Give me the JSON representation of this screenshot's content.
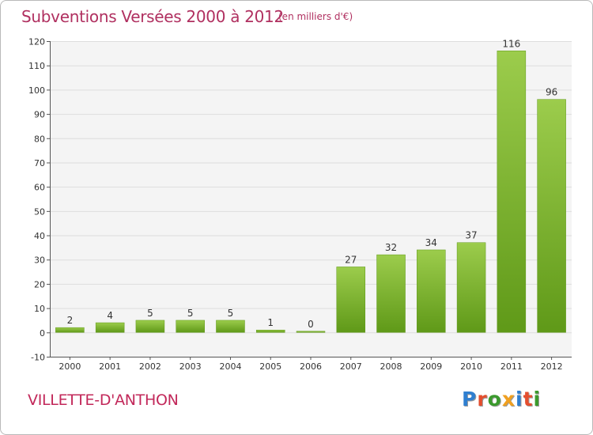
{
  "header": {
    "title": "Subventions Versées 2000 à 2012",
    "unit": "(en milliers d'€)"
  },
  "footer": {
    "commune": "VILLETTE-D'ANTHON",
    "logo": [
      "P",
      "r",
      "o",
      "x",
      "i",
      "t",
      "i"
    ]
  },
  "colors": {
    "title": "#b03060",
    "bar_light": "#9ccc4c",
    "bar_dark": "#5f9918",
    "grid": "#dddddd",
    "plot_bg": "#f4f4f4",
    "logo": [
      "#2f7fd0",
      "#e44e2e",
      "#3b9a2d",
      "#f0a020",
      "#2f7fd0",
      "#e44e2e",
      "#3b9a2d"
    ]
  },
  "chart_data": {
    "type": "bar",
    "categories": [
      "2000",
      "2001",
      "2002",
      "2003",
      "2004",
      "2005",
      "2006",
      "2007",
      "2008",
      "2009",
      "2010",
      "2011",
      "2012"
    ],
    "values": [
      2,
      4,
      5,
      5,
      5,
      1,
      0,
      27,
      32,
      34,
      37,
      116,
      96
    ],
    "ylim": [
      -10,
      120
    ],
    "yticks": [
      -10,
      0,
      10,
      20,
      30,
      40,
      50,
      60,
      70,
      80,
      90,
      100,
      110,
      120
    ],
    "grid": true,
    "legend": "none"
  }
}
